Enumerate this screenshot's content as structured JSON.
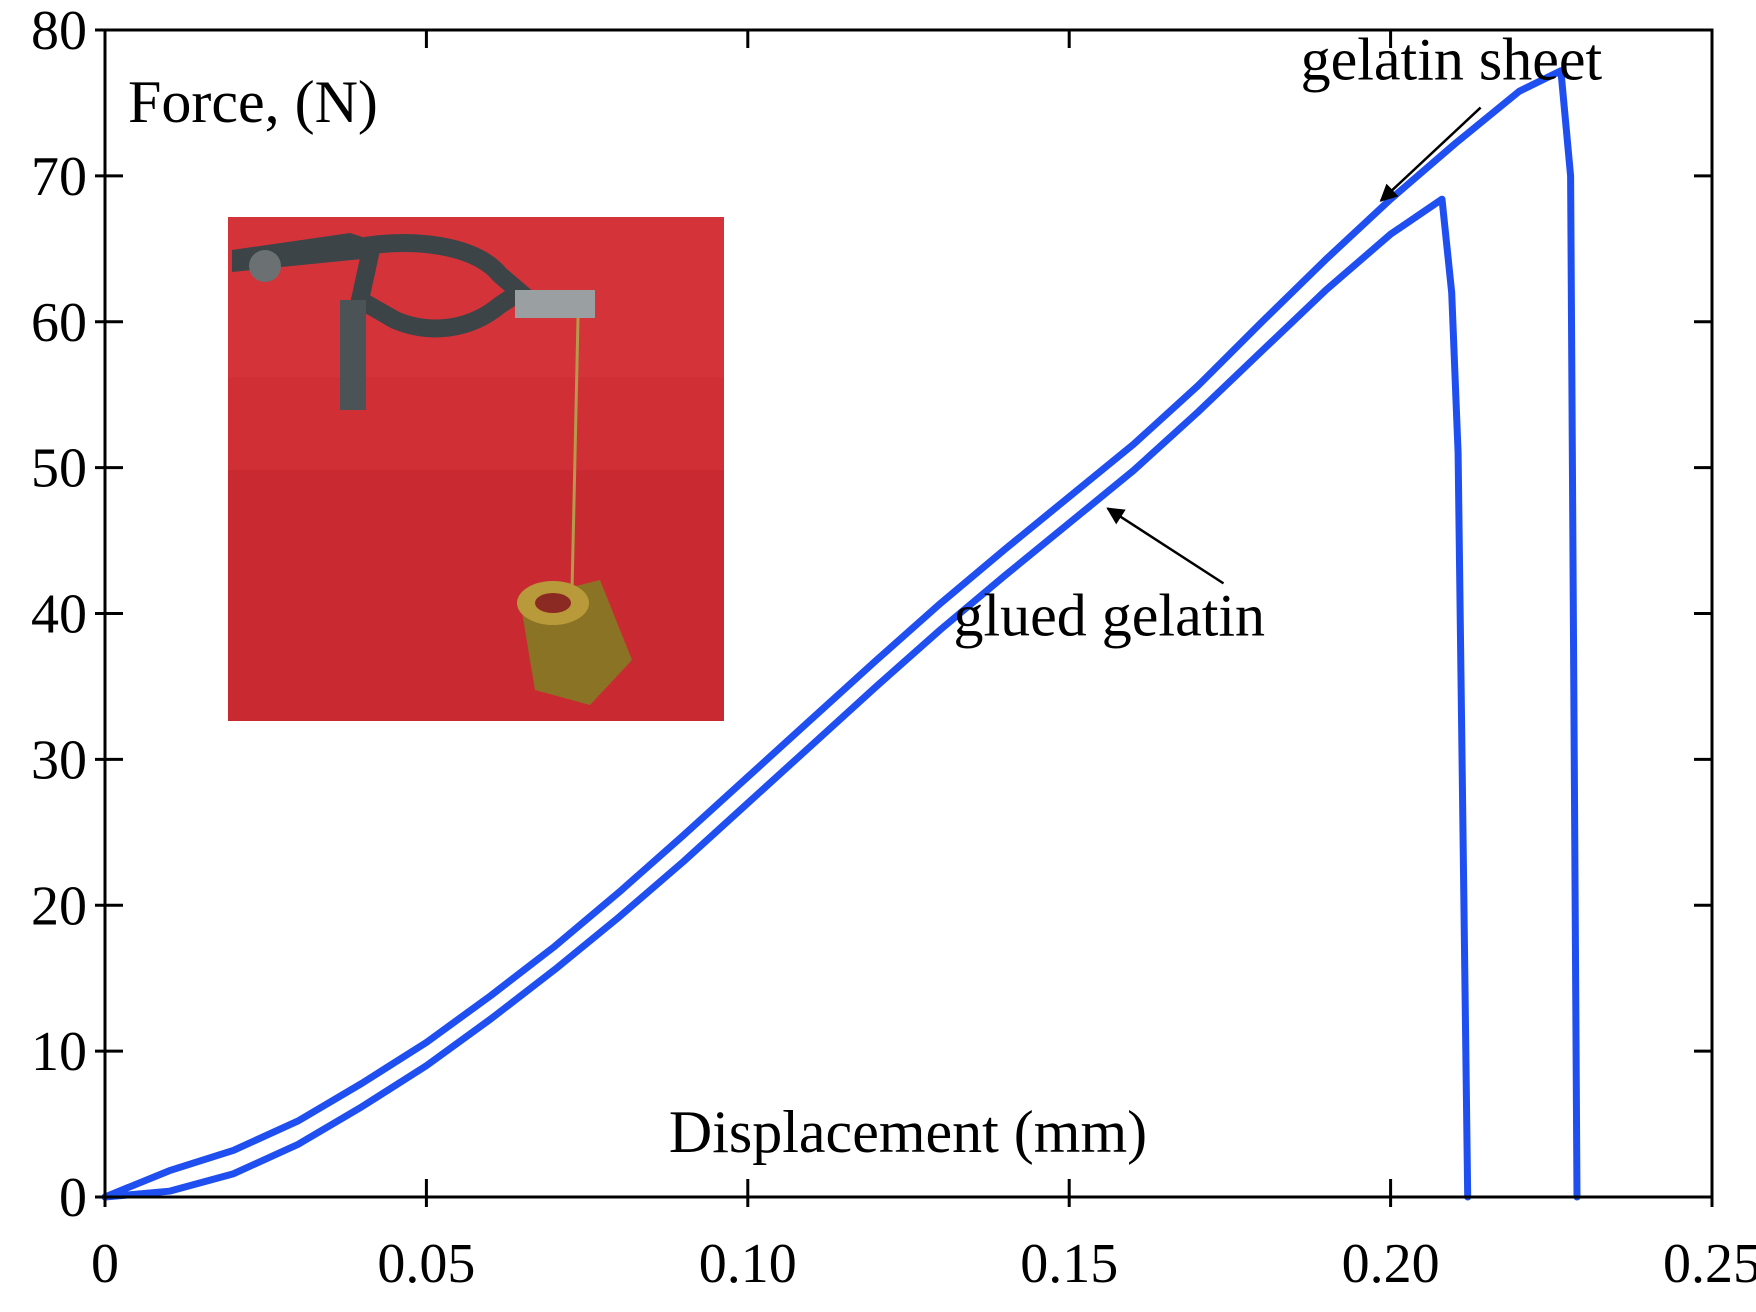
{
  "chart_data": {
    "type": "line",
    "title": "",
    "xlabel": "Displacement (mm)",
    "ylabel": "Force, (N)",
    "xlim": [
      0,
      0.25
    ],
    "ylim": [
      0,
      80
    ],
    "x_ticks": [
      "0",
      "0.05",
      "0.10",
      "0.15",
      "0.20",
      "0.25"
    ],
    "x_tick_values": [
      0,
      0.05,
      0.1,
      0.15,
      0.2,
      0.25
    ],
    "y_ticks": [
      "0",
      "10",
      "20",
      "30",
      "40",
      "50",
      "60",
      "70",
      "80"
    ],
    "y_tick_values": [
      0,
      10,
      20,
      30,
      40,
      50,
      60,
      70,
      80
    ],
    "grid": false,
    "legend": "none",
    "line_color": "#1f4ff0",
    "series": [
      {
        "name": "gelatin sheet",
        "points": [
          [
            0.0,
            0.0
          ],
          [
            0.01,
            1.8
          ],
          [
            0.02,
            3.2
          ],
          [
            0.03,
            5.2
          ],
          [
            0.04,
            7.8
          ],
          [
            0.05,
            10.6
          ],
          [
            0.06,
            13.8
          ],
          [
            0.07,
            17.2
          ],
          [
            0.08,
            20.9
          ],
          [
            0.09,
            24.8
          ],
          [
            0.1,
            28.8
          ],
          [
            0.11,
            32.8
          ],
          [
            0.12,
            36.8
          ],
          [
            0.13,
            40.7
          ],
          [
            0.14,
            44.4
          ],
          [
            0.15,
            48.0
          ],
          [
            0.16,
            51.6
          ],
          [
            0.17,
            55.6
          ],
          [
            0.18,
            60.0
          ],
          [
            0.19,
            64.3
          ],
          [
            0.2,
            68.4
          ],
          [
            0.21,
            72.2
          ],
          [
            0.22,
            75.8
          ],
          [
            0.2265,
            77.2
          ],
          [
            0.228,
            70.0
          ],
          [
            0.229,
            0.0
          ]
        ]
      },
      {
        "name": "glued gelatin",
        "points": [
          [
            0.0,
            0.0
          ],
          [
            0.01,
            0.4
          ],
          [
            0.02,
            1.6
          ],
          [
            0.03,
            3.6
          ],
          [
            0.04,
            6.2
          ],
          [
            0.05,
            9.0
          ],
          [
            0.06,
            12.2
          ],
          [
            0.07,
            15.6
          ],
          [
            0.08,
            19.2
          ],
          [
            0.09,
            23.0
          ],
          [
            0.1,
            27.0
          ],
          [
            0.11,
            31.0
          ],
          [
            0.12,
            35.0
          ],
          [
            0.13,
            38.9
          ],
          [
            0.14,
            42.6
          ],
          [
            0.15,
            46.2
          ],
          [
            0.16,
            49.8
          ],
          [
            0.17,
            53.8
          ],
          [
            0.18,
            58.0
          ],
          [
            0.19,
            62.2
          ],
          [
            0.2,
            66.0
          ],
          [
            0.208,
            68.4
          ],
          [
            0.2095,
            62.0
          ],
          [
            0.2105,
            51.0
          ],
          [
            0.212,
            0.0
          ]
        ]
      }
    ],
    "annotations": [
      {
        "text": "gelatin sheet",
        "x": 0.186,
        "y": 76.6,
        "arrow_to": [
          0.1985,
          68.3
        ]
      },
      {
        "text": "glued gelatin",
        "x": 0.132,
        "y": 38.5,
        "arrow_to": [
          0.156,
          47.2
        ]
      }
    ],
    "inset": {
      "description_icon": "photo-inset-icon",
      "colors": {
        "background": "#cf2f35",
        "clamp": "#3d4447",
        "weight": "#8a7324"
      }
    }
  }
}
